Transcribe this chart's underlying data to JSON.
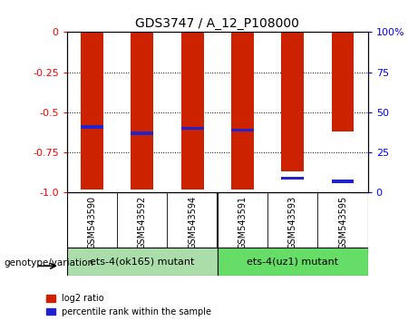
{
  "title": "GDS3747 / A_12_P108000",
  "samples": [
    "GSM543590",
    "GSM543592",
    "GSM543594",
    "GSM543591",
    "GSM543593",
    "GSM543595"
  ],
  "log2_ratio": [
    -0.98,
    -0.98,
    -0.98,
    -0.98,
    -0.87,
    -0.62
  ],
  "percentile_rank": [
    0.42,
    0.38,
    0.41,
    0.4,
    0.1,
    0.08
  ],
  "bar_color": "#cc2200",
  "blue_color": "#2222cc",
  "bar_width": 0.45,
  "ylim": [
    -1.0,
    0.0
  ],
  "yticks_left": [
    0,
    -0.25,
    -0.5,
    -0.75,
    -1.0
  ],
  "yticks_right": [
    100,
    75,
    50,
    25,
    0
  ],
  "group1_label": "ets-4(ok165) mutant",
  "group2_label": "ets-4(uz1) mutant",
  "group1_color": "#aaddaa",
  "group2_color": "#66dd66",
  "group_label": "genotype/variation",
  "legend_label1": "log2 ratio",
  "legend_label2": "percentile rank within the sample",
  "background_color": "#ffffff",
  "label_area_color": "#cccccc",
  "title_fontsize": 10,
  "tick_fontsize": 8,
  "sample_fontsize": 7
}
